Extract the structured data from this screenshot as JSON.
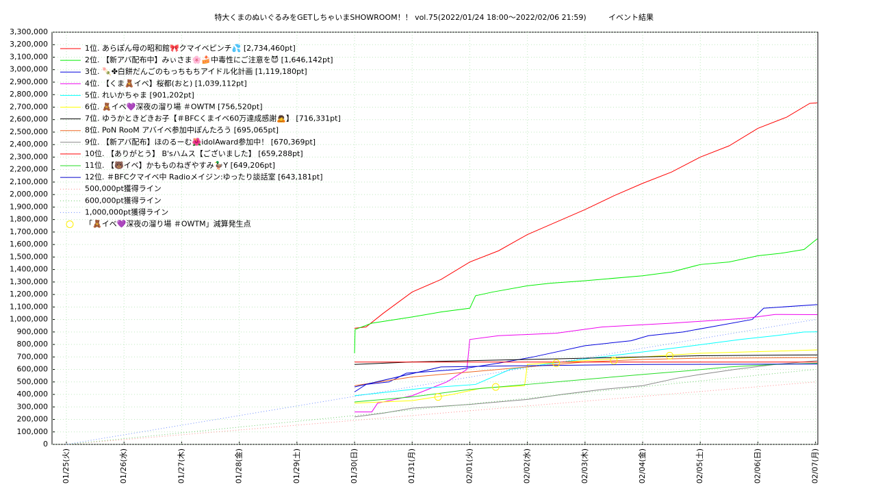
{
  "chart_data": {
    "type": "line",
    "title": "特大くまのぬいぐるみをGETしちゃいまSHOWROOM！！ vol.75(2022/01/24 18:00～2022/02/06 21:59)",
    "subtitle": "イベント結果",
    "xlim": [
      -0.25,
      13.04
    ],
    "xticks": [
      {
        "value": 0,
        "label": "01/25(火)"
      },
      {
        "value": 1,
        "label": "01/26(水)"
      },
      {
        "value": 2,
        "label": "01/27(木)"
      },
      {
        "value": 3,
        "label": "01/28(金)"
      },
      {
        "value": 4,
        "label": "01/29(土)"
      },
      {
        "value": 5,
        "label": "01/30(日)"
      },
      {
        "value": 6,
        "label": "01/31(月)"
      },
      {
        "value": 7,
        "label": "02/01(火)"
      },
      {
        "value": 8,
        "label": "02/02(水)"
      },
      {
        "value": 9,
        "label": "02/03(木)"
      },
      {
        "value": 10,
        "label": "02/04(金)"
      },
      {
        "value": 11,
        "label": "02/05(土)"
      },
      {
        "value": 12,
        "label": "02/06(日)"
      },
      {
        "value": 13,
        "label": "02/07(月)"
      }
    ],
    "ylim": [
      0,
      3300000
    ],
    "yticks": [
      0,
      {
        "value": 100000,
        "label": "100,000"
      },
      {
        "value": 200000,
        "label": "200,000"
      },
      {
        "value": 300000,
        "label": "300,000"
      },
      {
        "value": 400000,
        "label": "400,000"
      },
      {
        "value": 500000,
        "label": "500,000"
      },
      {
        "value": 600000,
        "label": "600,000"
      },
      {
        "value": 700000,
        "label": "700,000"
      },
      {
        "value": 800000,
        "label": "800,000"
      },
      {
        "value": 900000,
        "label": "900,000"
      },
      {
        "value": 1000000,
        "label": "1,000,000"
      },
      {
        "value": 1100000,
        "label": "1,100,000"
      },
      {
        "value": 1200000,
        "label": "1,200,000"
      },
      {
        "value": 1300000,
        "label": "1,300,000"
      },
      {
        "value": 1400000,
        "label": "1,400,000"
      },
      {
        "value": 1500000,
        "label": "1,500,000"
      },
      {
        "value": 1600000,
        "label": "1,600,000"
      },
      {
        "value": 1700000,
        "label": "1,700,000"
      },
      {
        "value": 1800000,
        "label": "1,800,000"
      },
      {
        "value": 1900000,
        "label": "1,900,000"
      },
      {
        "value": 2000000,
        "label": "2,000,000"
      },
      {
        "value": 2100000,
        "label": "2,100,000"
      },
      {
        "value": 2200000,
        "label": "2,200,000"
      },
      {
        "value": 2300000,
        "label": "2,300,000"
      },
      {
        "value": 2400000,
        "label": "2,400,000"
      },
      {
        "value": 2500000,
        "label": "2,500,000"
      },
      {
        "value": 2600000,
        "label": "2,600,000"
      },
      {
        "value": 2700000,
        "label": "2,700,000"
      },
      {
        "value": 2800000,
        "label": "2,800,000"
      },
      {
        "value": 2900000,
        "label": "2,900,000"
      },
      {
        "value": 3000000,
        "label": "3,000,000"
      },
      {
        "value": 3100000,
        "label": "3,100,000"
      },
      {
        "value": 3200000,
        "label": "3,200,000"
      },
      {
        "value": 3300000,
        "label": "3,300,000"
      }
    ],
    "grid": true,
    "series": [
      {
        "name": " 1位. あらぽん母の昭和館🎀クマイベピンチ💦 [2,734,460pt]",
        "color": "#ff0000",
        "style": "solid",
        "x": [
          5,
          5.2,
          5.5,
          6,
          6.5,
          7,
          7.5,
          8,
          8.5,
          9,
          9.5,
          10,
          10.5,
          11,
          11.5,
          12,
          12.5,
          12.9,
          13.03
        ],
        "values": [
          930000,
          940000,
          1050000,
          1220000,
          1320000,
          1460000,
          1550000,
          1680000,
          1780000,
          1880000,
          1990000,
          2090000,
          2180000,
          2300000,
          2390000,
          2530000,
          2620000,
          2730000,
          2734460
        ]
      },
      {
        "name": " 2位. 【新アバ配布中】みぃさま🌸🍰中毒性にご注意を😈 [1,646,142pt]",
        "color": "#00ee00",
        "style": "solid",
        "x": [
          5,
          5.01,
          5.3,
          6,
          6.5,
          7,
          7.1,
          7.4,
          8,
          8.4,
          9,
          10,
          10.5,
          11,
          11.5,
          12,
          12.4,
          12.8,
          13.03
        ],
        "values": [
          730000,
          920000,
          970000,
          1020000,
          1060000,
          1090000,
          1190000,
          1220000,
          1270000,
          1290000,
          1310000,
          1350000,
          1380000,
          1440000,
          1460000,
          1510000,
          1530000,
          1560000,
          1646142
        ]
      },
      {
        "name": " 3位. 🍡✤白餅だんごのもっちもちアイドル化計画 [1,119,180pt]",
        "color": "#0000dd",
        "style": "solid",
        "x": [
          5,
          5.2,
          5.6,
          5.9,
          6.8,
          7.5,
          8.1,
          8.6,
          9,
          9.8,
          10.1,
          10.7,
          11.3,
          11.9,
          12.1,
          13.03
        ],
        "values": [
          420000,
          480000,
          500000,
          570000,
          600000,
          650000,
          700000,
          750000,
          790000,
          830000,
          870000,
          900000,
          950000,
          1000000,
          1090000,
          1119180
        ]
      },
      {
        "name": " 4位. 【くま🧸イベ】桜都(おと) [1,039,112pt]",
        "color": "#ee00ee",
        "style": "solid",
        "x": [
          5,
          5.3,
          5.4,
          6,
          6.6,
          6.95,
          7,
          7.5,
          8.5,
          9.3,
          10.5,
          11.8,
          12.3,
          13.03
        ],
        "values": [
          260000,
          260000,
          330000,
          390000,
          500000,
          600000,
          840000,
          870000,
          890000,
          940000,
          970000,
          1010000,
          1040000,
          1039112
        ]
      },
      {
        "name": " 5位. れいかちゃま [901,202pt]",
        "color": "#00ffff",
        "style": "solid",
        "x": [
          5,
          5.6,
          6.2,
          7.1,
          7.7,
          8.3,
          9.1,
          10,
          10.7,
          11.7,
          12.3,
          12.8,
          13.03
        ],
        "values": [
          390000,
          420000,
          450000,
          480000,
          600000,
          640000,
          690000,
          740000,
          780000,
          840000,
          870000,
          900000,
          901202
        ]
      },
      {
        "name": " 6位. 🧸イベ💜深夜の溜り場 ＃OWTM [756,520pt]",
        "color": "#ffff00",
        "style": "solid",
        "x": [
          5,
          6,
          6.7,
          7.2,
          7.95,
          8,
          9,
          10,
          11,
          12.6,
          13.03
        ],
        "values": [
          330000,
          350000,
          400000,
          450000,
          470000,
          640000,
          670000,
          700000,
          730000,
          750000,
          756520
        ]
      },
      {
        "name": " 7位. ゆうかときどきお子【＃BFCくまイベ60万達成感謝🙇】 [716,331pt]",
        "color": "#000000",
        "style": "solid",
        "x": [
          5,
          6,
          7,
          8,
          9,
          10,
          11,
          13.03
        ],
        "values": [
          640000,
          660000,
          670000,
          680000,
          690000,
          700000,
          710000,
          716331
        ]
      },
      {
        "name": " 8位. PoN RooM アバイベ参加中ぽんたろう [695,065pt]",
        "color": "#ee6622",
        "style": "solid",
        "x": [
          5,
          6,
          7,
          8,
          9,
          10,
          11,
          13.03
        ],
        "values": [
          470000,
          540000,
          580000,
          620000,
          660000,
          680000,
          690000,
          695065
        ]
      },
      {
        "name": " 9位. 【新アバ配布】ほのるーむ🌺idolAward参加中！ [670,369pt]",
        "color": "#888888",
        "style": "solid",
        "x": [
          5,
          5.5,
          6,
          7,
          8,
          8.6,
          9.3,
          10,
          10.6,
          11,
          11.6,
          12.3,
          13.03
        ],
        "values": [
          220000,
          250000,
          290000,
          320000,
          360000,
          400000,
          440000,
          470000,
          530000,
          560000,
          600000,
          640000,
          670369
        ]
      },
      {
        "name": "10位. 【ありがとう】 B'sハムス【ございました】 [659,288pt]",
        "color": "#ff0000",
        "style": "solid",
        "x": [
          5,
          13.03
        ],
        "values": [
          659288,
          659288
        ]
      },
      {
        "name": "11位. 【🐻イベ】かもものねぎやすみ🦆Y [649,206pt]",
        "color": "#22dd22",
        "style": "solid",
        "x": [
          5,
          6,
          7,
          8,
          9,
          10,
          10.8,
          11.5,
          12.3,
          13.03
        ],
        "values": [
          340000,
          380000,
          440000,
          480000,
          520000,
          560000,
          590000,
          620000,
          640000,
          649206
        ]
      },
      {
        "name": "12位. ＃BFCクマイベ中 Radioメイジン:ゆったり談話室 [643,181pt]",
        "color": "#0000cc",
        "style": "solid",
        "x": [
          5,
          6.5,
          8,
          10,
          13.03
        ],
        "values": [
          460000,
          620000,
          630000,
          640000,
          643181
        ]
      },
      {
        "name": "500,000pt獲得ライン",
        "color": "#ff8888",
        "style": "dotted",
        "x": [
          0,
          13
        ],
        "values": [
          0,
          500000
        ]
      },
      {
        "name": "600,000pt獲得ライン",
        "color": "#66cc66",
        "style": "dotted",
        "x": [
          0,
          13
        ],
        "values": [
          0,
          600000
        ]
      },
      {
        "name": "1,000,000pt獲得ライン",
        "color": "#6688ff",
        "style": "dotted",
        "x": [
          0,
          13
        ],
        "values": [
          0,
          1000000
        ]
      },
      {
        "name": "「🧸イベ💜深夜の溜り場 ＃OWTM」減算発生点",
        "color": "#ffee00",
        "style": "marker",
        "x": [
          6.45,
          7.45,
          8.5,
          9.5,
          10.47
        ],
        "values": [
          380000,
          460000,
          650000,
          670000,
          710000
        ]
      }
    ]
  }
}
